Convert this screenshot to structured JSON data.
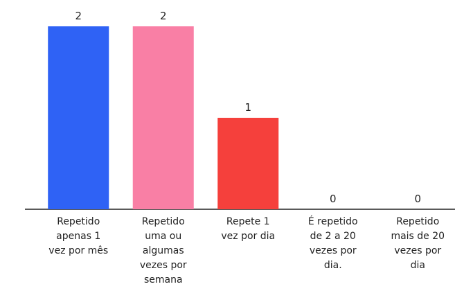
{
  "chart_data": {
    "type": "bar",
    "categories": [
      "Repetido apenas 1 vez por mês",
      "Repetido uma ou algumas vezes por semana",
      "Repete 1 vez por dia",
      "É repetido de 2 a 20 vezes por dia.",
      "Repetido mais de 20 vezes por dia"
    ],
    "values": [
      2,
      2,
      1,
      0,
      0
    ],
    "colors": [
      "#2f62f5",
      "#f97fa5",
      "#f5403c",
      null,
      null
    ]
  }
}
